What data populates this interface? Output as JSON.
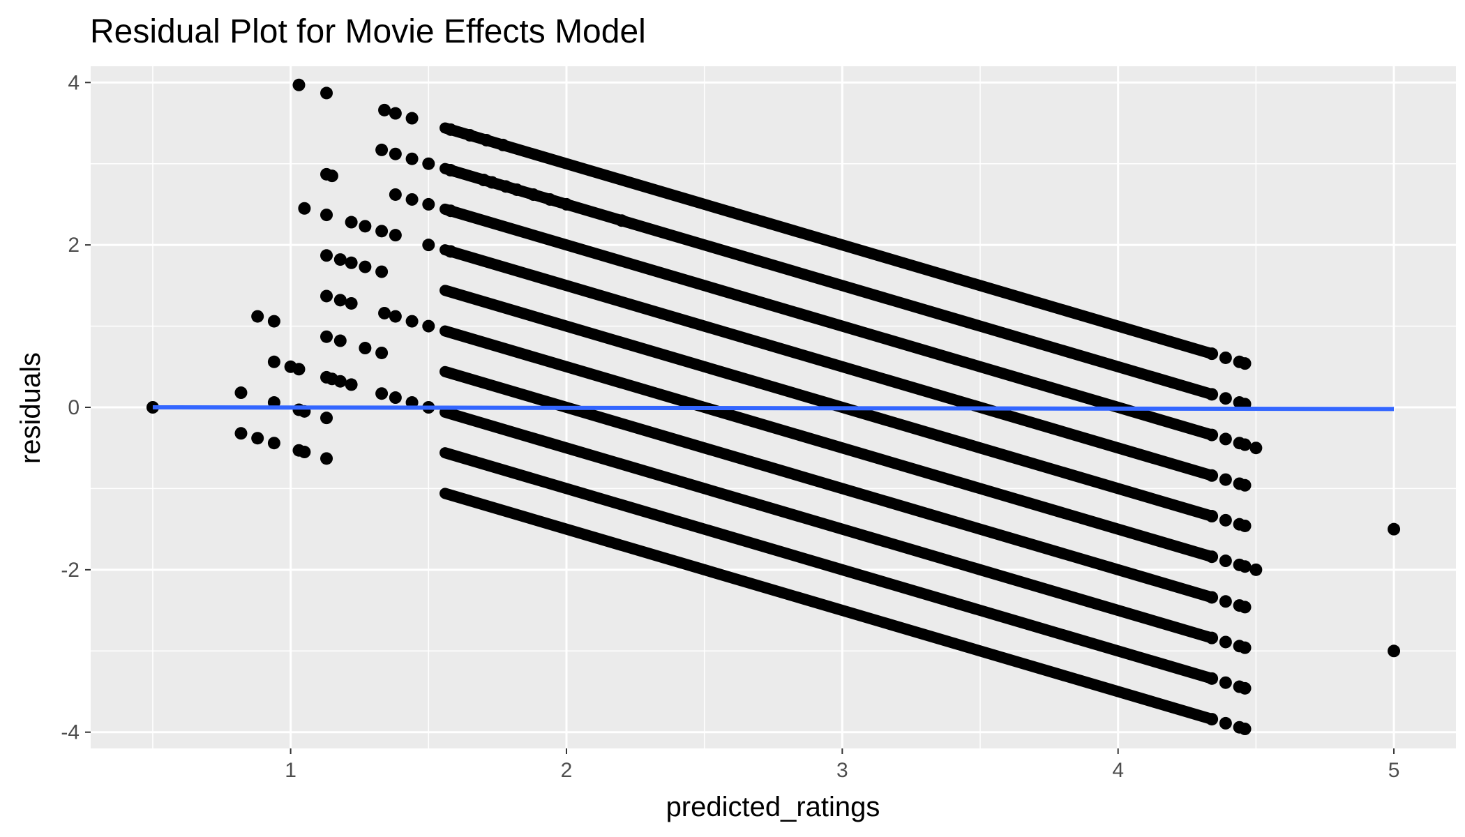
{
  "chart_data": {
    "type": "scatter",
    "title": "Residual Plot for Movie Effects Model",
    "xlabel": "predicted_ratings",
    "ylabel": "residuals",
    "xlim": [
      0.275,
      5.225
    ],
    "ylim": [
      -4.2,
      4.2
    ],
    "x_ticks": [
      1,
      2,
      3,
      4,
      5
    ],
    "x_tick_labels": [
      "1",
      "2",
      "3",
      "4",
      "5"
    ],
    "y_ticks": [
      -4,
      -2,
      0,
      2,
      4
    ],
    "y_tick_labels": [
      "-4",
      "-2",
      "0",
      "2",
      "4"
    ],
    "grid": true,
    "background": "#ebebeb",
    "colors": {
      "points": "#000000",
      "smooth_line": "#3366ff",
      "grid": "#ffffff",
      "text": "#4d4d4d"
    },
    "bands": {
      "note": "dense residual bands: residual = rating - predicted, one per rating level",
      "rating_levels": [
        0.5,
        1.0,
        1.5,
        2.0,
        2.5,
        3.0,
        3.5,
        4.0,
        4.5,
        5.0
      ],
      "x_range": [
        1.56,
        4.33
      ]
    },
    "points": [
      [
        0.5,
        0.0
      ],
      [
        0.82,
        0.18
      ],
      [
        0.82,
        -0.32
      ],
      [
        0.88,
        1.12
      ],
      [
        0.88,
        -0.38
      ],
      [
        0.94,
        1.06
      ],
      [
        0.94,
        0.56
      ],
      [
        0.94,
        0.06
      ],
      [
        0.94,
        -0.44
      ],
      [
        1.0,
        0.5
      ],
      [
        1.03,
        3.97
      ],
      [
        1.03,
        0.47
      ],
      [
        1.03,
        -0.03
      ],
      [
        1.03,
        -0.53
      ],
      [
        1.05,
        2.45
      ],
      [
        1.05,
        -0.05
      ],
      [
        1.05,
        -0.55
      ],
      [
        1.13,
        3.87
      ],
      [
        1.13,
        2.87
      ],
      [
        1.13,
        2.37
      ],
      [
        1.13,
        1.87
      ],
      [
        1.13,
        1.37
      ],
      [
        1.13,
        0.87
      ],
      [
        1.13,
        0.37
      ],
      [
        1.13,
        -0.13
      ],
      [
        1.13,
        -0.63
      ],
      [
        1.15,
        2.85
      ],
      [
        1.15,
        0.35
      ],
      [
        1.18,
        1.82
      ],
      [
        1.18,
        1.32
      ],
      [
        1.18,
        0.82
      ],
      [
        1.18,
        0.32
      ],
      [
        1.22,
        2.28
      ],
      [
        1.22,
        1.78
      ],
      [
        1.22,
        1.28
      ],
      [
        1.22,
        0.28
      ],
      [
        1.27,
        2.23
      ],
      [
        1.27,
        1.73
      ],
      [
        1.27,
        0.73
      ],
      [
        1.33,
        3.17
      ],
      [
        1.33,
        2.17
      ],
      [
        1.33,
        1.67
      ],
      [
        1.33,
        0.67
      ],
      [
        1.33,
        0.17
      ],
      [
        1.34,
        3.66
      ],
      [
        1.34,
        1.16
      ],
      [
        1.38,
        3.62
      ],
      [
        1.38,
        3.12
      ],
      [
        1.38,
        2.62
      ],
      [
        1.38,
        2.12
      ],
      [
        1.38,
        1.12
      ],
      [
        1.38,
        0.12
      ],
      [
        1.44,
        3.56
      ],
      [
        1.44,
        3.06
      ],
      [
        1.44,
        2.56
      ],
      [
        1.44,
        1.06
      ],
      [
        1.44,
        0.06
      ],
      [
        1.5,
        3.0
      ],
      [
        1.5,
        2.5
      ],
      [
        1.5,
        2.0
      ],
      [
        1.5,
        1.0
      ],
      [
        1.5,
        0.0
      ],
      [
        1.58,
        3.42
      ],
      [
        1.58,
        2.92
      ],
      [
        1.58,
        2.42
      ],
      [
        1.58,
        1.92
      ],
      [
        1.65,
        3.35
      ],
      [
        1.71,
        3.29
      ],
      [
        1.77,
        3.23
      ],
      [
        1.7,
        2.8
      ],
      [
        1.73,
        2.77
      ],
      [
        1.78,
        2.72
      ],
      [
        1.82,
        2.68
      ],
      [
        1.88,
        2.62
      ],
      [
        1.94,
        2.56
      ],
      [
        2.0,
        2.5
      ],
      [
        2.2,
        2.3
      ],
      [
        4.34,
        0.66
      ],
      [
        4.34,
        0.16
      ],
      [
        4.34,
        -0.34
      ],
      [
        4.34,
        -0.84
      ],
      [
        4.34,
        -1.34
      ],
      [
        4.34,
        -1.84
      ],
      [
        4.34,
        -2.34
      ],
      [
        4.34,
        -2.84
      ],
      [
        4.34,
        -3.34
      ],
      [
        4.34,
        -3.84
      ],
      [
        4.39,
        0.61
      ],
      [
        4.39,
        0.11
      ],
      [
        4.39,
        -0.39
      ],
      [
        4.39,
        -0.89
      ],
      [
        4.39,
        -1.39
      ],
      [
        4.39,
        -1.89
      ],
      [
        4.39,
        -2.39
      ],
      [
        4.39,
        -2.89
      ],
      [
        4.39,
        -3.39
      ],
      [
        4.39,
        -3.89
      ],
      [
        4.44,
        0.56
      ],
      [
        4.44,
        0.06
      ],
      [
        4.44,
        -0.44
      ],
      [
        4.44,
        -0.94
      ],
      [
        4.44,
        -1.44
      ],
      [
        4.44,
        -1.94
      ],
      [
        4.44,
        -2.44
      ],
      [
        4.44,
        -2.94
      ],
      [
        4.44,
        -3.44
      ],
      [
        4.44,
        -3.94
      ],
      [
        4.46,
        0.54
      ],
      [
        4.46,
        0.04
      ],
      [
        4.46,
        -0.46
      ],
      [
        4.46,
        -0.96
      ],
      [
        4.46,
        -1.46
      ],
      [
        4.46,
        -1.96
      ],
      [
        4.46,
        -2.46
      ],
      [
        4.46,
        -2.96
      ],
      [
        4.46,
        -3.46
      ],
      [
        4.46,
        -3.96
      ],
      [
        4.5,
        -0.5
      ],
      [
        4.5,
        -2.0
      ],
      [
        5.0,
        -1.5
      ],
      [
        5.0,
        -3.0
      ]
    ],
    "smooth_line": {
      "x": [
        0.5,
        5.0
      ],
      "y": [
        0.0,
        -0.02
      ]
    }
  }
}
